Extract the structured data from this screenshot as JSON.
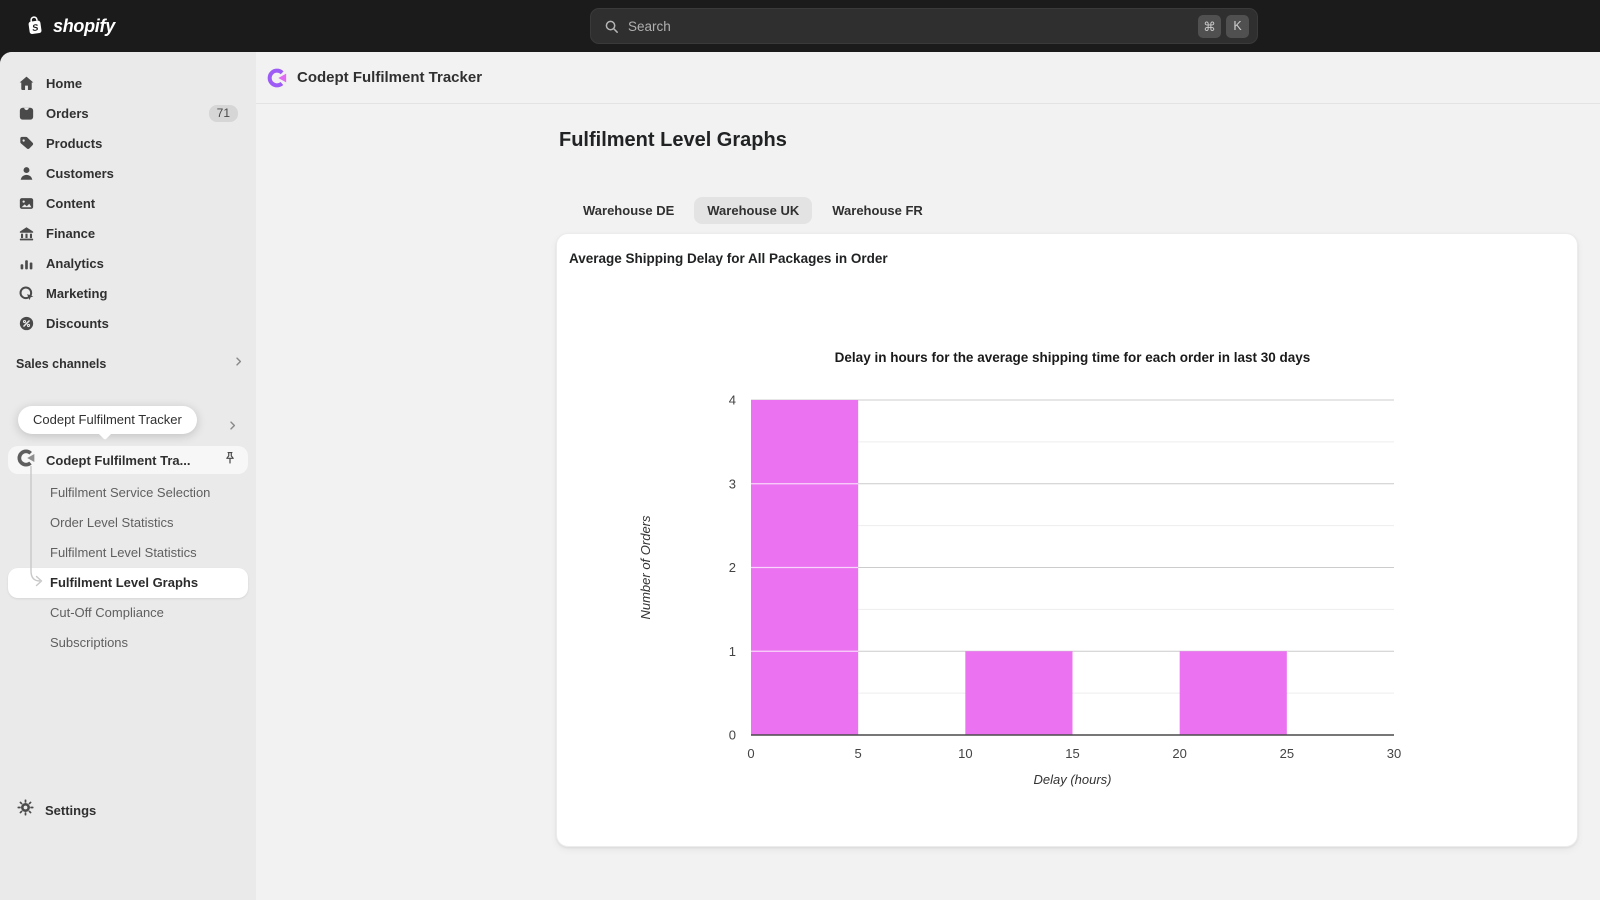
{
  "topbar": {
    "brand": "shopify",
    "search": {
      "placeholder": "Search",
      "keys": [
        "⌘",
        "K"
      ]
    }
  },
  "sidebar": {
    "items": [
      {
        "icon": "home-icon",
        "label": "Home"
      },
      {
        "icon": "orders-icon",
        "label": "Orders",
        "badge": "71"
      },
      {
        "icon": "products-icon",
        "label": "Products"
      },
      {
        "icon": "customers-icon",
        "label": "Customers"
      },
      {
        "icon": "content-icon",
        "label": "Content"
      },
      {
        "icon": "finance-icon",
        "label": "Finance"
      },
      {
        "icon": "analytics-icon",
        "label": "Analytics"
      },
      {
        "icon": "marketing-icon",
        "label": "Marketing"
      },
      {
        "icon": "discounts-icon",
        "label": "Discounts"
      }
    ],
    "sales_channels_label": "Sales channels",
    "app_tooltip": "Codept Fulfilment Tracker",
    "app": {
      "label": "Codept Fulfilment Tra...",
      "children": [
        "Fulfilment Service Selection",
        "Order Level Statistics",
        "Fulfilment Level Statistics",
        "Fulfilment Level Graphs",
        "Cut-Off Compliance",
        "Subscriptions"
      ],
      "selected_child": "Fulfilment Level Graphs"
    },
    "settings_label": "Settings"
  },
  "header": {
    "app_title": "Codept Fulfilment Tracker"
  },
  "page": {
    "title": "Fulfilment Level Graphs",
    "tabs": [
      {
        "label": "Warehouse DE",
        "selected": false
      },
      {
        "label": "Warehouse UK",
        "selected": true
      },
      {
        "label": "Warehouse FR",
        "selected": false
      }
    ],
    "card_title": "Average Shipping Delay for All Packages in Order"
  },
  "chart_data": {
    "type": "bar",
    "title": "Delay in hours for the average shipping time for each order in last 30 days",
    "xlabel": "Delay (hours)",
    "ylabel": "Number of Orders",
    "xlim": [
      0,
      30
    ],
    "ylim": [
      0,
      4
    ],
    "x_ticks": [
      0,
      5,
      10,
      15,
      20,
      25,
      30
    ],
    "y_ticks": [
      0,
      1,
      2,
      3,
      4
    ],
    "bars": [
      {
        "x_start": 0,
        "x_end": 5,
        "count": 4
      },
      {
        "x_start": 10,
        "x_end": 15,
        "count": 1
      },
      {
        "x_start": 20,
        "x_end": 25,
        "count": 1
      }
    ],
    "bar_color": "#EB72F1",
    "grid": true
  }
}
